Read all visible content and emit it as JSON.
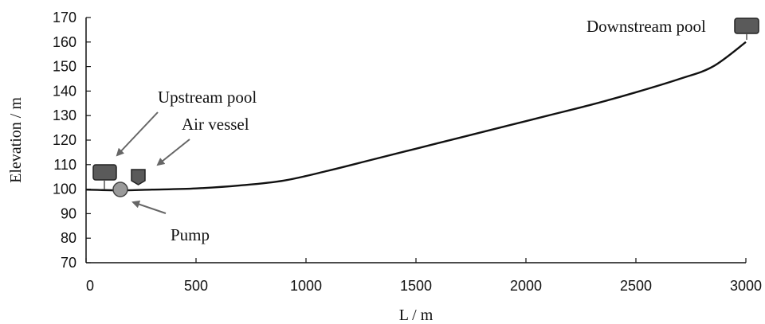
{
  "chart_data": {
    "type": "line",
    "title": "",
    "xlabel": "L / m",
    "ylabel": "Elevation / m",
    "xlim": [
      0,
      3000
    ],
    "ylim": [
      70,
      170
    ],
    "grid": false,
    "x_ticks": [
      "0",
      "500",
      "1000",
      "1500",
      "2000",
      "2500",
      "3000"
    ],
    "y_ticks": [
      "70",
      "80",
      "90",
      "100",
      "110",
      "120",
      "130",
      "140",
      "150",
      "160",
      "170"
    ],
    "series": [
      {
        "x": [
          0,
          150,
          300,
          500,
          700,
          900,
          1100,
          1300,
          1500,
          1700,
          1900,
          2100,
          2300,
          2500,
          2700,
          2850,
          3000
        ],
        "y": [
          99.8,
          99.5,
          99.8,
          100.3,
          101.5,
          103.5,
          107.5,
          112,
          116.5,
          121,
          125.5,
          130,
          134.5,
          139.5,
          145,
          150,
          160
        ]
      }
    ],
    "annotations": [
      {
        "label": "Upstream pool",
        "component": "upstream-pool",
        "x": 85,
        "y": 107
      },
      {
        "label": "Air vessel",
        "component": "air-vessel",
        "x": 240,
        "y": 105
      },
      {
        "label": "Pump",
        "component": "pump",
        "x": 160,
        "y": 100
      },
      {
        "label": "Downstream pool",
        "component": "downstream-pool",
        "x": 3005,
        "y": 166
      }
    ],
    "colors": {
      "line": "#111111",
      "pool_fill": "#5a5a5a",
      "pump_fill": "#9a9a9a",
      "arrow": "#666666"
    }
  }
}
